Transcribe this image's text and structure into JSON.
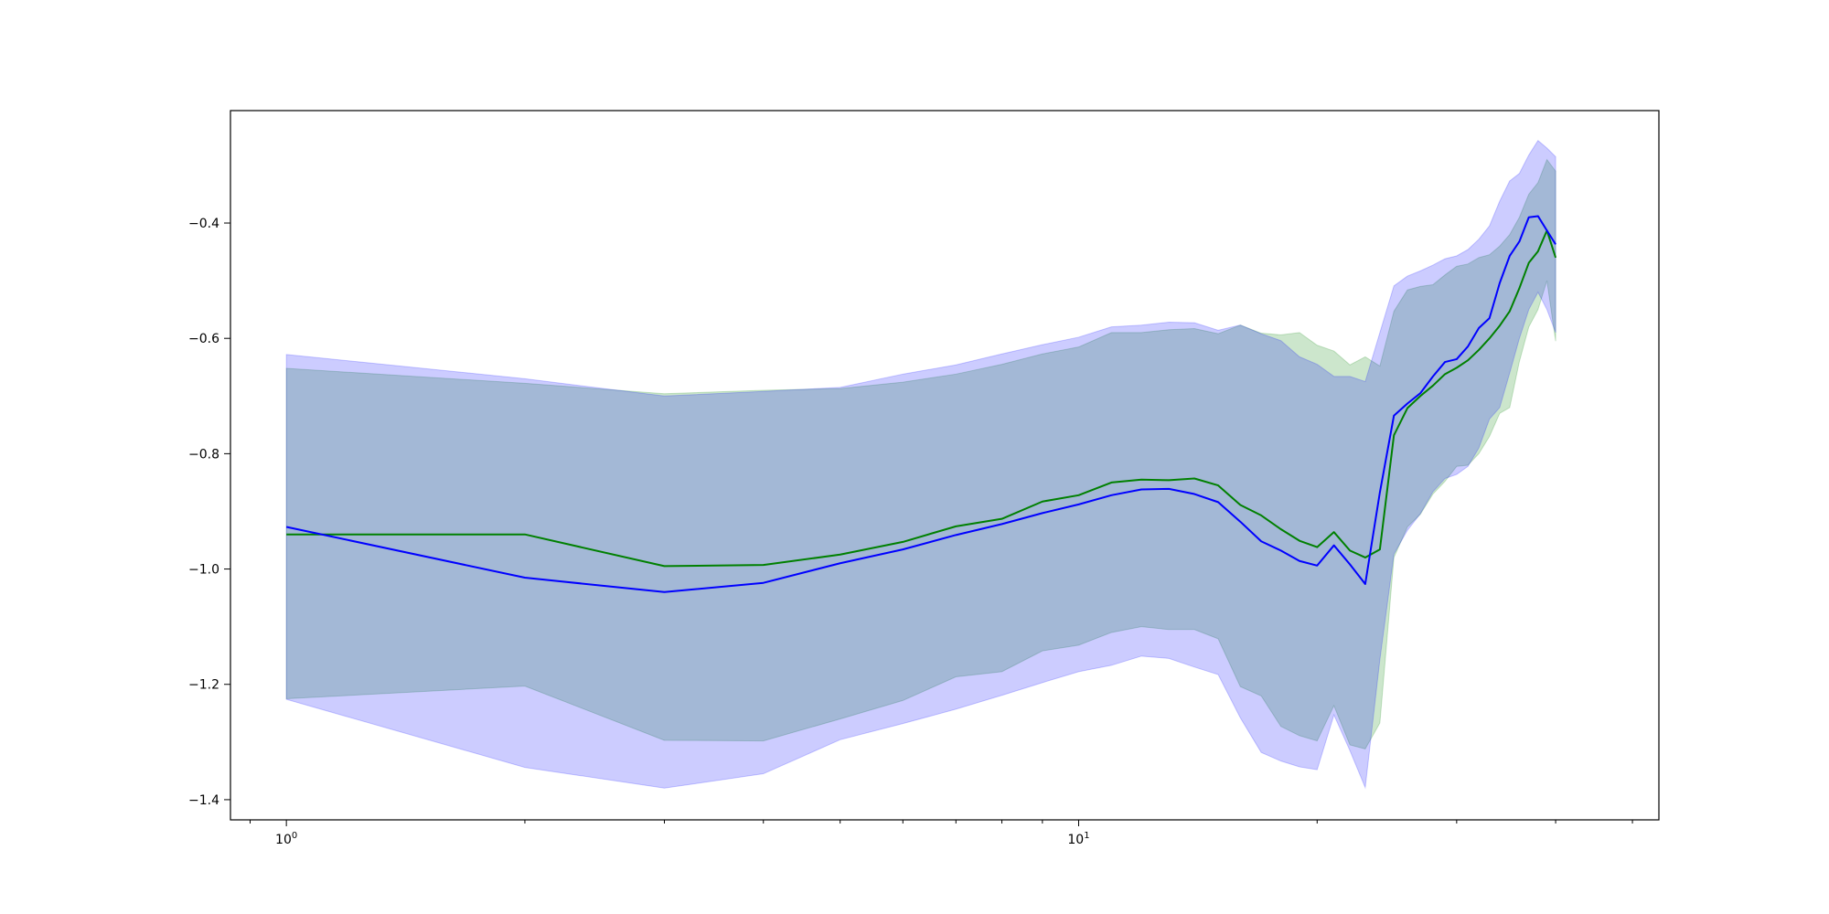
{
  "chart_data": {
    "type": "line",
    "xscale": "log",
    "xlim": [
      0.85,
      54
    ],
    "ylim": [
      -1.435,
      -0.205
    ],
    "grid": false,
    "legend": "none",
    "title": "",
    "xlabel": "",
    "ylabel": "",
    "xticks": [
      {
        "value": 1,
        "base": "10",
        "exp": "0"
      },
      {
        "value": 10,
        "base": "10",
        "exp": "1"
      }
    ],
    "yticks": [
      {
        "value": -0.4,
        "label": "−0.4"
      },
      {
        "value": -0.6,
        "label": "−0.6"
      },
      {
        "value": -0.8,
        "label": "−0.8"
      },
      {
        "value": -1.0,
        "label": "−1.0"
      },
      {
        "value": -1.2,
        "label": "−1.2"
      },
      {
        "value": -1.4,
        "label": "−1.4"
      }
    ],
    "series": [
      {
        "color": "#008000",
        "fill_color": "#008000",
        "fill_opacity": 0.2,
        "x": [
          1,
          2,
          3,
          4,
          5,
          6,
          7,
          8,
          9,
          10,
          11,
          12,
          13,
          14,
          15,
          16,
          17,
          18,
          19,
          20,
          21,
          22,
          23,
          24,
          25,
          26,
          27,
          28,
          29,
          30,
          31,
          32,
          33,
          34,
          35,
          36,
          37,
          38,
          39,
          40
        ],
        "y": [
          -0.94,
          -0.94,
          -0.995,
          -0.993,
          -0.975,
          -0.953,
          -0.926,
          -0.913,
          -0.883,
          -0.872,
          -0.85,
          -0.845,
          -0.846,
          -0.843,
          -0.855,
          -0.889,
          -0.907,
          -0.931,
          -0.951,
          -0.962,
          -0.936,
          -0.968,
          -0.98,
          -0.966,
          -0.768,
          -0.721,
          -0.7,
          -0.682,
          -0.662,
          -0.651,
          -0.638,
          -0.62,
          -0.6,
          -0.578,
          -0.553,
          -0.513,
          -0.469,
          -0.449,
          -0.413,
          -0.46
        ],
        "upper": [
          -0.652,
          -0.678,
          -0.696,
          -0.69,
          -0.687,
          -0.676,
          -0.662,
          -0.645,
          -0.627,
          -0.615,
          -0.59,
          -0.59,
          -0.585,
          -0.583,
          -0.592,
          -0.577,
          -0.591,
          -0.594,
          -0.59,
          -0.612,
          -0.622,
          -0.646,
          -0.632,
          -0.648,
          -0.553,
          -0.516,
          -0.51,
          -0.507,
          -0.49,
          -0.475,
          -0.471,
          -0.46,
          -0.455,
          -0.44,
          -0.42,
          -0.39,
          -0.35,
          -0.33,
          -0.29,
          -0.31
        ],
        "lower": [
          -1.225,
          -1.203,
          -1.297,
          -1.298,
          -1.26,
          -1.228,
          -1.187,
          -1.178,
          -1.142,
          -1.132,
          -1.11,
          -1.1,
          -1.105,
          -1.105,
          -1.121,
          -1.204,
          -1.22,
          -1.273,
          -1.289,
          -1.298,
          -1.237,
          -1.305,
          -1.312,
          -1.267,
          -0.98,
          -0.927,
          -0.905,
          -0.87,
          -0.848,
          -0.822,
          -0.82,
          -0.8,
          -0.77,
          -0.73,
          -0.72,
          -0.64,
          -0.58,
          -0.55,
          -0.5,
          -0.605
        ]
      },
      {
        "color": "#0000ff",
        "fill_color": "#0000ff",
        "fill_opacity": 0.2,
        "x": [
          1,
          2,
          3,
          4,
          5,
          6,
          7,
          8,
          9,
          10,
          11,
          12,
          13,
          14,
          15,
          16,
          17,
          18,
          19,
          20,
          21,
          22,
          23,
          24,
          25,
          26,
          27,
          28,
          29,
          30,
          31,
          32,
          33,
          34,
          35,
          36,
          37,
          38,
          39,
          40
        ],
        "y": [
          -0.927,
          -1.015,
          -1.04,
          -1.024,
          -0.99,
          -0.966,
          -0.941,
          -0.922,
          -0.903,
          -0.888,
          -0.872,
          -0.862,
          -0.861,
          -0.87,
          -0.884,
          -0.918,
          -0.952,
          -0.968,
          -0.986,
          -0.994,
          -0.959,
          -0.992,
          -1.026,
          -0.867,
          -0.734,
          -0.713,
          -0.695,
          -0.666,
          -0.641,
          -0.636,
          -0.614,
          -0.582,
          -0.565,
          -0.504,
          -0.457,
          -0.432,
          -0.39,
          -0.388,
          -0.413,
          -0.437
        ],
        "upper": [
          -0.628,
          -0.67,
          -0.7,
          -0.692,
          -0.685,
          -0.662,
          -0.646,
          -0.627,
          -0.611,
          -0.598,
          -0.58,
          -0.577,
          -0.572,
          -0.573,
          -0.586,
          -0.577,
          -0.592,
          -0.604,
          -0.632,
          -0.645,
          -0.666,
          -0.666,
          -0.675,
          -0.59,
          -0.509,
          -0.492,
          -0.483,
          -0.473,
          -0.462,
          -0.457,
          -0.446,
          -0.428,
          -0.405,
          -0.362,
          -0.327,
          -0.314,
          -0.282,
          -0.257,
          -0.27,
          -0.285
        ],
        "lower": [
          -1.226,
          -1.344,
          -1.38,
          -1.355,
          -1.296,
          -1.268,
          -1.243,
          -1.219,
          -1.197,
          -1.178,
          -1.167,
          -1.151,
          -1.155,
          -1.17,
          -1.183,
          -1.258,
          -1.318,
          -1.333,
          -1.343,
          -1.348,
          -1.253,
          -1.315,
          -1.379,
          -1.157,
          -0.974,
          -0.933,
          -0.904,
          -0.866,
          -0.843,
          -0.836,
          -0.822,
          -0.79,
          -0.74,
          -0.72,
          -0.66,
          -0.6,
          -0.55,
          -0.52,
          -0.55,
          -0.59
        ]
      }
    ]
  }
}
